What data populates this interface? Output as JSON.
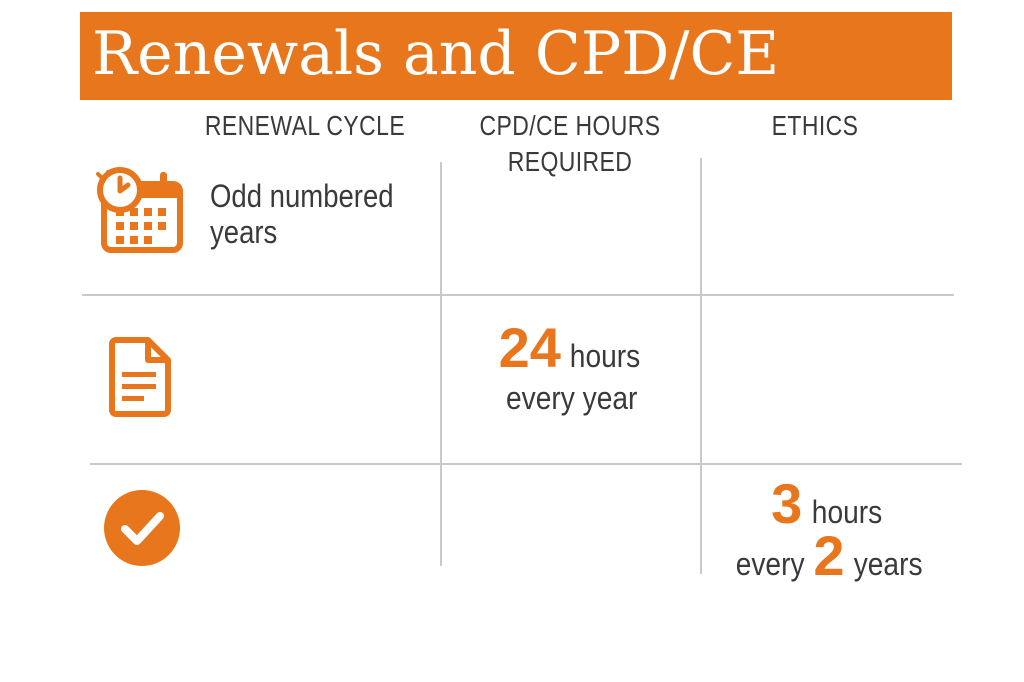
{
  "header": {
    "title": "Renewals and CPD/CE"
  },
  "columns": {
    "renewal_cycle": "RENEWAL CYCLE",
    "cpd_line1": "CPD/CE HOURS",
    "cpd_line2": "REQUIRED",
    "ethics": "ETHICS"
  },
  "rows": {
    "cycle": {
      "icon": "calendar-clock-icon",
      "text_line1": "Odd numbered",
      "text_line2": "years"
    },
    "cpd": {
      "icon": "document-icon",
      "amount": "24",
      "unit": "hours",
      "period": "every year"
    },
    "ethics": {
      "icon": "checkmark-circle-icon",
      "amount": "3",
      "unit": "hours",
      "period_prefix": "every",
      "period_number": "2",
      "period_suffix": "years"
    }
  },
  "colors": {
    "accent": "#e8761c",
    "text": "#3a3a3a",
    "rule": "#c9c9c9"
  }
}
